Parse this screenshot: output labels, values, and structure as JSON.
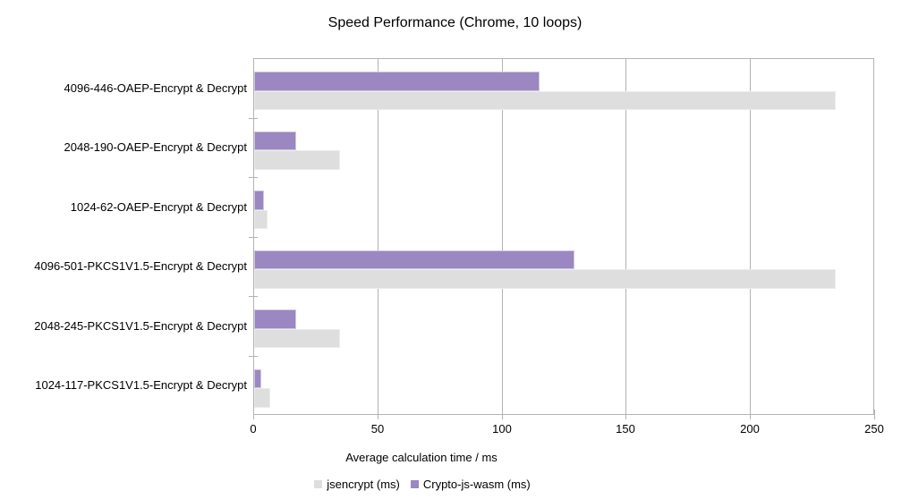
{
  "chart_data": {
    "type": "bar",
    "orientation": "horizontal",
    "title": "Speed Performance (Chrome, 10 loops)",
    "xlabel": "Average calculation time / ms",
    "categories": [
      "4096-446-OAEP-Encrypt & Decrypt",
      "2048-190-OAEP-Encrypt & Decrypt",
      "1024-62-OAEP-Encrypt & Decrypt",
      "4096-501-PKCS1V1.5-Encrypt & Decrypt",
      "2048-245-PKCS1V1.5-Encrypt & Decrypt",
      "1024-117-PKCS1V1.5-Encrypt & Decrypt"
    ],
    "series": [
      {
        "name": "jsencrypt (ms)",
        "color": "#dedede",
        "border_color": "#ececec",
        "values": [
          234,
          34.5,
          5.5,
          234,
          34.5,
          6.5
        ]
      },
      {
        "name": "Crypto-js-wasm (ms)",
        "color": "#9b87c1",
        "border_color": "#cfc7e2",
        "values": [
          115,
          17,
          4,
          129,
          17,
          3
        ]
      }
    ],
    "xlim": [
      0,
      250
    ],
    "xticks": [
      0,
      50,
      100,
      150,
      200,
      250
    ],
    "grid": "vertical",
    "gridline_color": "#b3b3b3",
    "legend_position": "bottom"
  }
}
